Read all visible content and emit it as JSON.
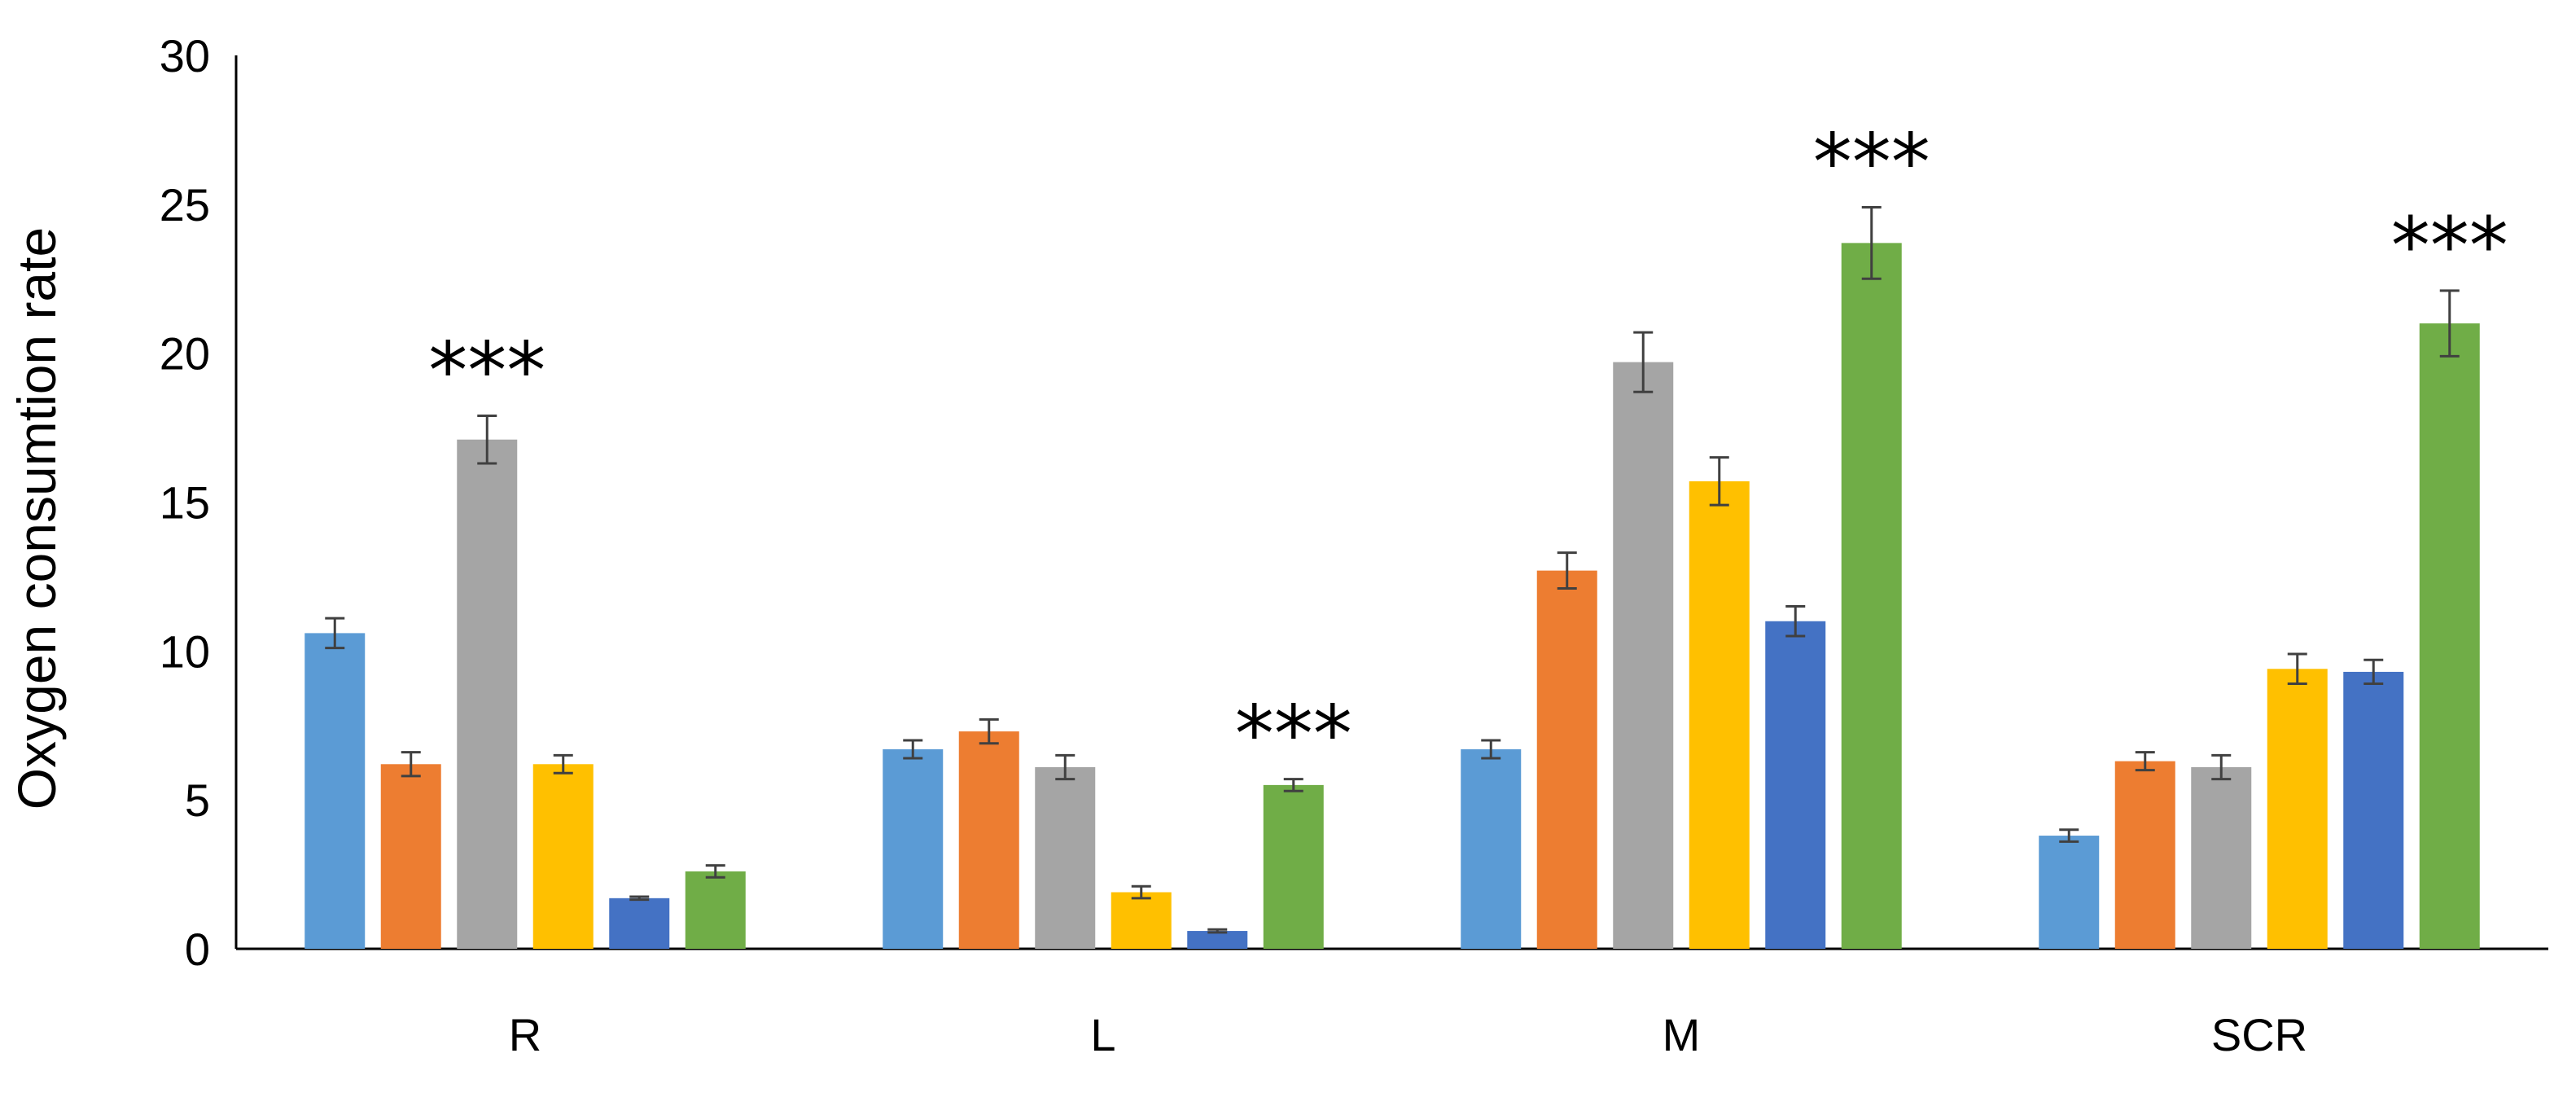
{
  "chart_data": {
    "type": "bar",
    "title": "",
    "xlabel": "",
    "ylabel": "Oxygen  consumtion rate",
    "ylim": [
      0,
      30
    ],
    "yticks": [
      0,
      5,
      10,
      15,
      20,
      25,
      30
    ],
    "categories": [
      "R",
      "L",
      "M",
      "SCR"
    ],
    "grid": false,
    "legend": "none",
    "series": [
      {
        "color": "#5B9BD5",
        "values": [
          10.6,
          6.7,
          6.7,
          3.8
        ],
        "errors": [
          0.5,
          0.3,
          0.3,
          0.2
        ]
      },
      {
        "color": "#ED7D31",
        "values": [
          6.2,
          7.3,
          12.7,
          6.3
        ],
        "errors": [
          0.4,
          0.4,
          0.6,
          0.3
        ]
      },
      {
        "color": "#A5A5A5",
        "values": [
          17.1,
          6.1,
          19.7,
          6.1
        ],
        "errors": [
          0.8,
          0.4,
          1.0,
          0.4
        ]
      },
      {
        "color": "#FFC000",
        "values": [
          6.2,
          1.9,
          15.7,
          9.4
        ],
        "errors": [
          0.3,
          0.2,
          0.8,
          0.5
        ]
      },
      {
        "color": "#4472C4",
        "values": [
          1.7,
          0.6,
          11.0,
          9.3
        ],
        "errors": [
          0.05,
          0.05,
          0.5,
          0.4
        ]
      },
      {
        "color": "#70AD47",
        "values": [
          2.6,
          5.5,
          23.7,
          21.0
        ],
        "errors": [
          0.2,
          0.2,
          1.2,
          1.1
        ]
      }
    ],
    "annotations": [
      {
        "text": "***",
        "category": "R",
        "series": 2
      },
      {
        "text": "***",
        "category": "L",
        "series": 5
      },
      {
        "text": "***",
        "category": "M",
        "series": 5
      },
      {
        "text": "***",
        "category": "SCR",
        "series": 5
      }
    ]
  }
}
